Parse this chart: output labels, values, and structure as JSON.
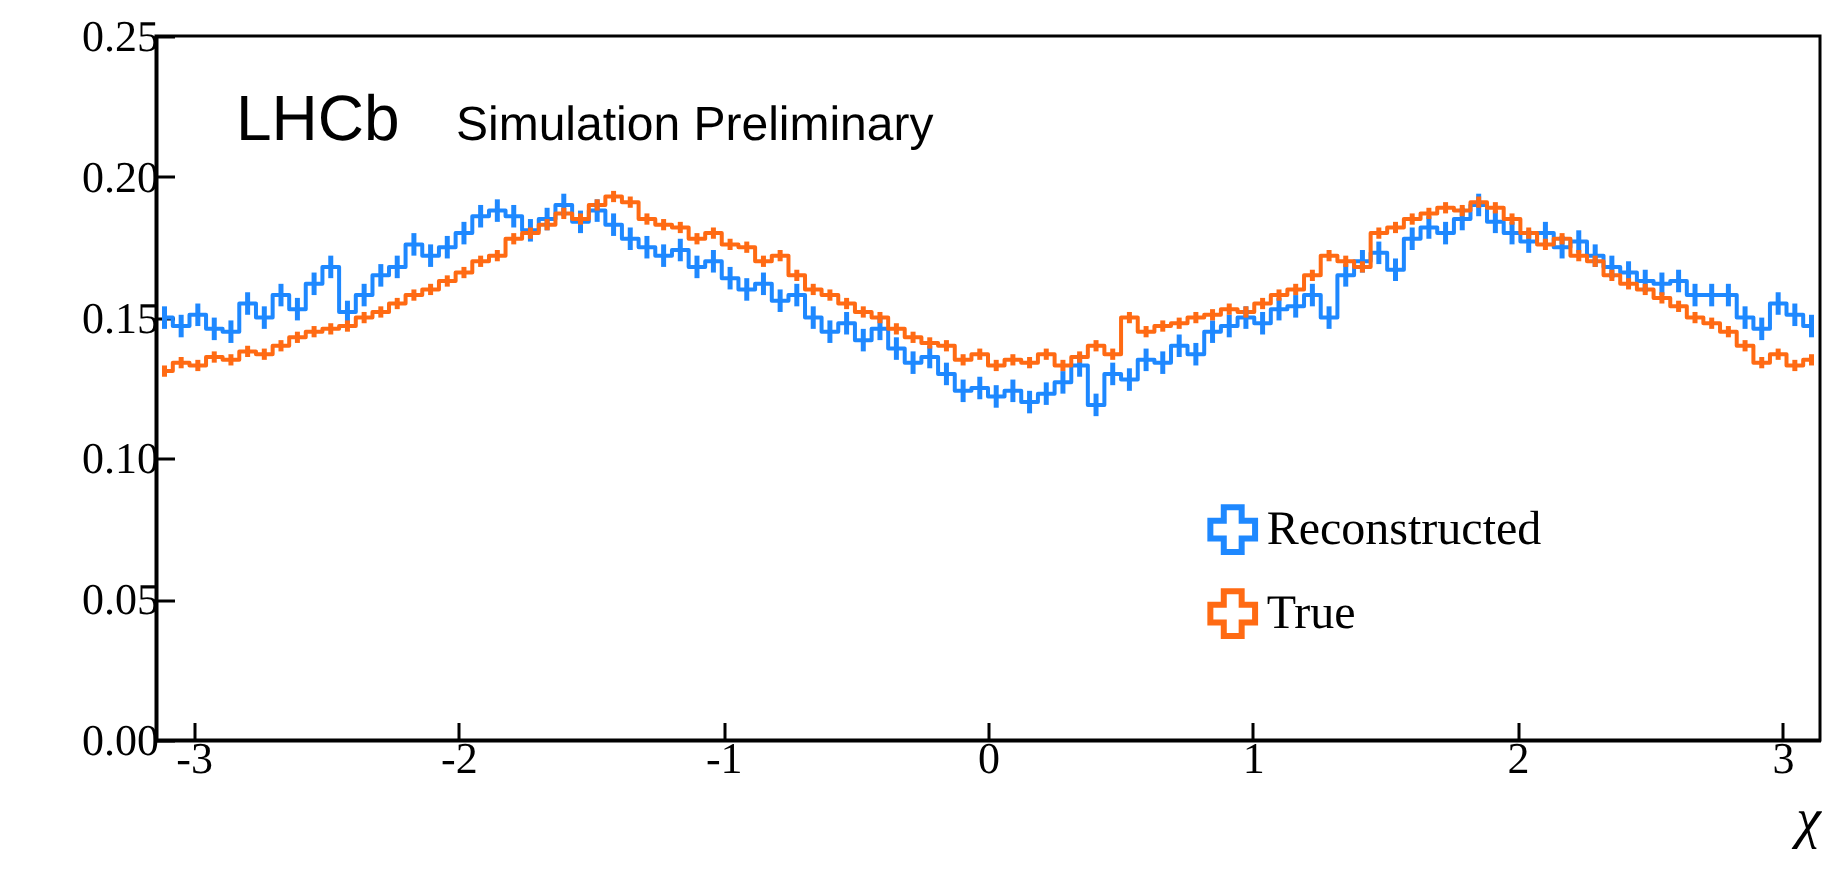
{
  "chart_data": {
    "type": "step",
    "title": "LHCb",
    "subtitle": "Simulation Preliminary",
    "xlabel": "χ",
    "x": [
      -3.11,
      -3.047,
      -2.984,
      -2.922,
      -2.859,
      -2.796,
      -2.733,
      -2.67,
      -2.608,
      -2.545,
      -2.482,
      -2.419,
      -2.356,
      -2.293,
      -2.231,
      -2.168,
      -2.105,
      -2.042,
      -1.979,
      -1.916,
      -1.853,
      -1.791,
      -1.728,
      -1.665,
      -1.602,
      -1.539,
      -1.476,
      -1.414,
      -1.351,
      -1.288,
      -1.225,
      -1.162,
      -1.099,
      -1.037,
      -0.974,
      -0.911,
      -0.848,
      -0.785,
      -0.722,
      -0.66,
      -0.597,
      -0.534,
      -0.471,
      -0.408,
      -0.346,
      -0.283,
      -0.22,
      -0.157,
      -0.094,
      -0.031,
      0.031,
      0.094,
      0.157,
      0.22,
      0.283,
      0.346,
      0.408,
      0.471,
      0.534,
      0.597,
      0.66,
      0.722,
      0.785,
      0.848,
      0.911,
      0.974,
      1.037,
      1.099,
      1.162,
      1.225,
      1.288,
      1.351,
      1.414,
      1.476,
      1.539,
      1.602,
      1.665,
      1.728,
      1.791,
      1.853,
      1.916,
      1.979,
      2.042,
      2.105,
      2.168,
      2.231,
      2.293,
      2.356,
      2.419,
      2.482,
      2.545,
      2.608,
      2.67,
      2.733,
      2.796,
      2.859,
      2.922,
      2.984,
      3.047,
      3.11
    ],
    "series": [
      {
        "name": "Reconstructed",
        "color": "#1e88ff",
        "values": [
          0.15,
          0.147,
          0.151,
          0.146,
          0.145,
          0.155,
          0.15,
          0.158,
          0.153,
          0.162,
          0.168,
          0.152,
          0.158,
          0.165,
          0.168,
          0.176,
          0.172,
          0.175,
          0.18,
          0.186,
          0.188,
          0.186,
          0.181,
          0.185,
          0.19,
          0.184,
          0.188,
          0.183,
          0.178,
          0.175,
          0.172,
          0.174,
          0.168,
          0.17,
          0.164,
          0.16,
          0.162,
          0.156,
          0.158,
          0.15,
          0.145,
          0.148,
          0.142,
          0.146,
          0.139,
          0.134,
          0.136,
          0.13,
          0.124,
          0.125,
          0.122,
          0.124,
          0.12,
          0.123,
          0.127,
          0.133,
          0.119,
          0.13,
          0.128,
          0.135,
          0.134,
          0.14,
          0.137,
          0.145,
          0.147,
          0.15,
          0.148,
          0.153,
          0.154,
          0.158,
          0.15,
          0.165,
          0.17,
          0.173,
          0.167,
          0.178,
          0.182,
          0.18,
          0.185,
          0.19,
          0.184,
          0.18,
          0.177,
          0.18,
          0.175,
          0.177,
          0.172,
          0.168,
          0.166,
          0.163,
          0.162,
          0.163,
          0.158,
          0.158,
          0.158,
          0.15,
          0.146,
          0.155,
          0.151,
          0.147
        ],
        "errors": [
          0.004,
          0.004,
          0.004,
          0.004,
          0.004,
          0.004,
          0.004,
          0.004,
          0.004,
          0.004,
          0.004,
          0.004,
          0.004,
          0.004,
          0.004,
          0.004,
          0.004,
          0.004,
          0.004,
          0.004,
          0.004,
          0.004,
          0.004,
          0.004,
          0.004,
          0.004,
          0.004,
          0.004,
          0.004,
          0.004,
          0.004,
          0.004,
          0.004,
          0.004,
          0.004,
          0.004,
          0.004,
          0.004,
          0.004,
          0.004,
          0.004,
          0.004,
          0.004,
          0.004,
          0.004,
          0.004,
          0.004,
          0.004,
          0.004,
          0.004,
          0.004,
          0.004,
          0.004,
          0.004,
          0.004,
          0.004,
          0.004,
          0.004,
          0.004,
          0.004,
          0.004,
          0.004,
          0.004,
          0.004,
          0.004,
          0.004,
          0.004,
          0.004,
          0.004,
          0.004,
          0.004,
          0.004,
          0.004,
          0.004,
          0.004,
          0.004,
          0.004,
          0.004,
          0.004,
          0.004,
          0.004,
          0.004,
          0.004,
          0.004,
          0.004,
          0.004,
          0.004,
          0.004,
          0.004,
          0.004,
          0.004,
          0.004,
          0.004,
          0.004,
          0.004,
          0.004,
          0.004,
          0.004,
          0.004,
          0.004
        ]
      },
      {
        "name": "True",
        "color": "#ff6a13",
        "values": [
          0.131,
          0.134,
          0.133,
          0.136,
          0.135,
          0.138,
          0.137,
          0.14,
          0.143,
          0.145,
          0.146,
          0.147,
          0.15,
          0.152,
          0.155,
          0.158,
          0.16,
          0.163,
          0.166,
          0.17,
          0.172,
          0.178,
          0.18,
          0.183,
          0.187,
          0.185,
          0.19,
          0.193,
          0.191,
          0.185,
          0.183,
          0.182,
          0.178,
          0.18,
          0.176,
          0.175,
          0.17,
          0.172,
          0.165,
          0.16,
          0.158,
          0.155,
          0.152,
          0.15,
          0.146,
          0.143,
          0.141,
          0.14,
          0.135,
          0.137,
          0.133,
          0.135,
          0.134,
          0.137,
          0.133,
          0.136,
          0.14,
          0.137,
          0.15,
          0.145,
          0.147,
          0.148,
          0.15,
          0.151,
          0.153,
          0.152,
          0.155,
          0.158,
          0.16,
          0.165,
          0.172,
          0.17,
          0.168,
          0.18,
          0.182,
          0.185,
          0.187,
          0.189,
          0.188,
          0.191,
          0.189,
          0.185,
          0.18,
          0.176,
          0.178,
          0.172,
          0.17,
          0.165,
          0.162,
          0.16,
          0.157,
          0.154,
          0.15,
          0.148,
          0.145,
          0.14,
          0.134,
          0.137,
          0.133,
          0.135
        ],
        "errors": [
          0.002,
          0.002,
          0.002,
          0.002,
          0.002,
          0.002,
          0.002,
          0.002,
          0.002,
          0.002,
          0.002,
          0.002,
          0.002,
          0.002,
          0.002,
          0.002,
          0.002,
          0.002,
          0.002,
          0.002,
          0.002,
          0.002,
          0.002,
          0.002,
          0.002,
          0.002,
          0.002,
          0.002,
          0.002,
          0.002,
          0.002,
          0.002,
          0.002,
          0.002,
          0.002,
          0.002,
          0.002,
          0.002,
          0.002,
          0.002,
          0.002,
          0.002,
          0.002,
          0.002,
          0.002,
          0.002,
          0.002,
          0.002,
          0.002,
          0.002,
          0.002,
          0.002,
          0.002,
          0.002,
          0.002,
          0.002,
          0.002,
          0.002,
          0.002,
          0.002,
          0.002,
          0.002,
          0.002,
          0.002,
          0.002,
          0.002,
          0.002,
          0.002,
          0.002,
          0.002,
          0.002,
          0.002,
          0.002,
          0.002,
          0.002,
          0.002,
          0.002,
          0.002,
          0.002,
          0.002,
          0.002,
          0.002,
          0.002,
          0.002,
          0.002,
          0.002,
          0.002,
          0.002,
          0.002,
          0.002,
          0.002,
          0.002,
          0.002,
          0.002,
          0.002,
          0.002,
          0.002,
          0.002,
          0.002,
          0.002
        ]
      }
    ],
    "xlim": [
      -3.142,
      3.142
    ],
    "xticks": [
      -3,
      -2,
      -1,
      0,
      1,
      2,
      3
    ],
    "ylim": [
      0,
      0.25
    ],
    "yticks": [
      {
        "value": 0,
        "label": "0.00"
      },
      0.05,
      {
        "value": 0.1,
        "label": "0.10"
      },
      0.15,
      {
        "value": 0.2,
        "label": "0.20"
      },
      0.25
    ],
    "legend": "bottom right"
  }
}
